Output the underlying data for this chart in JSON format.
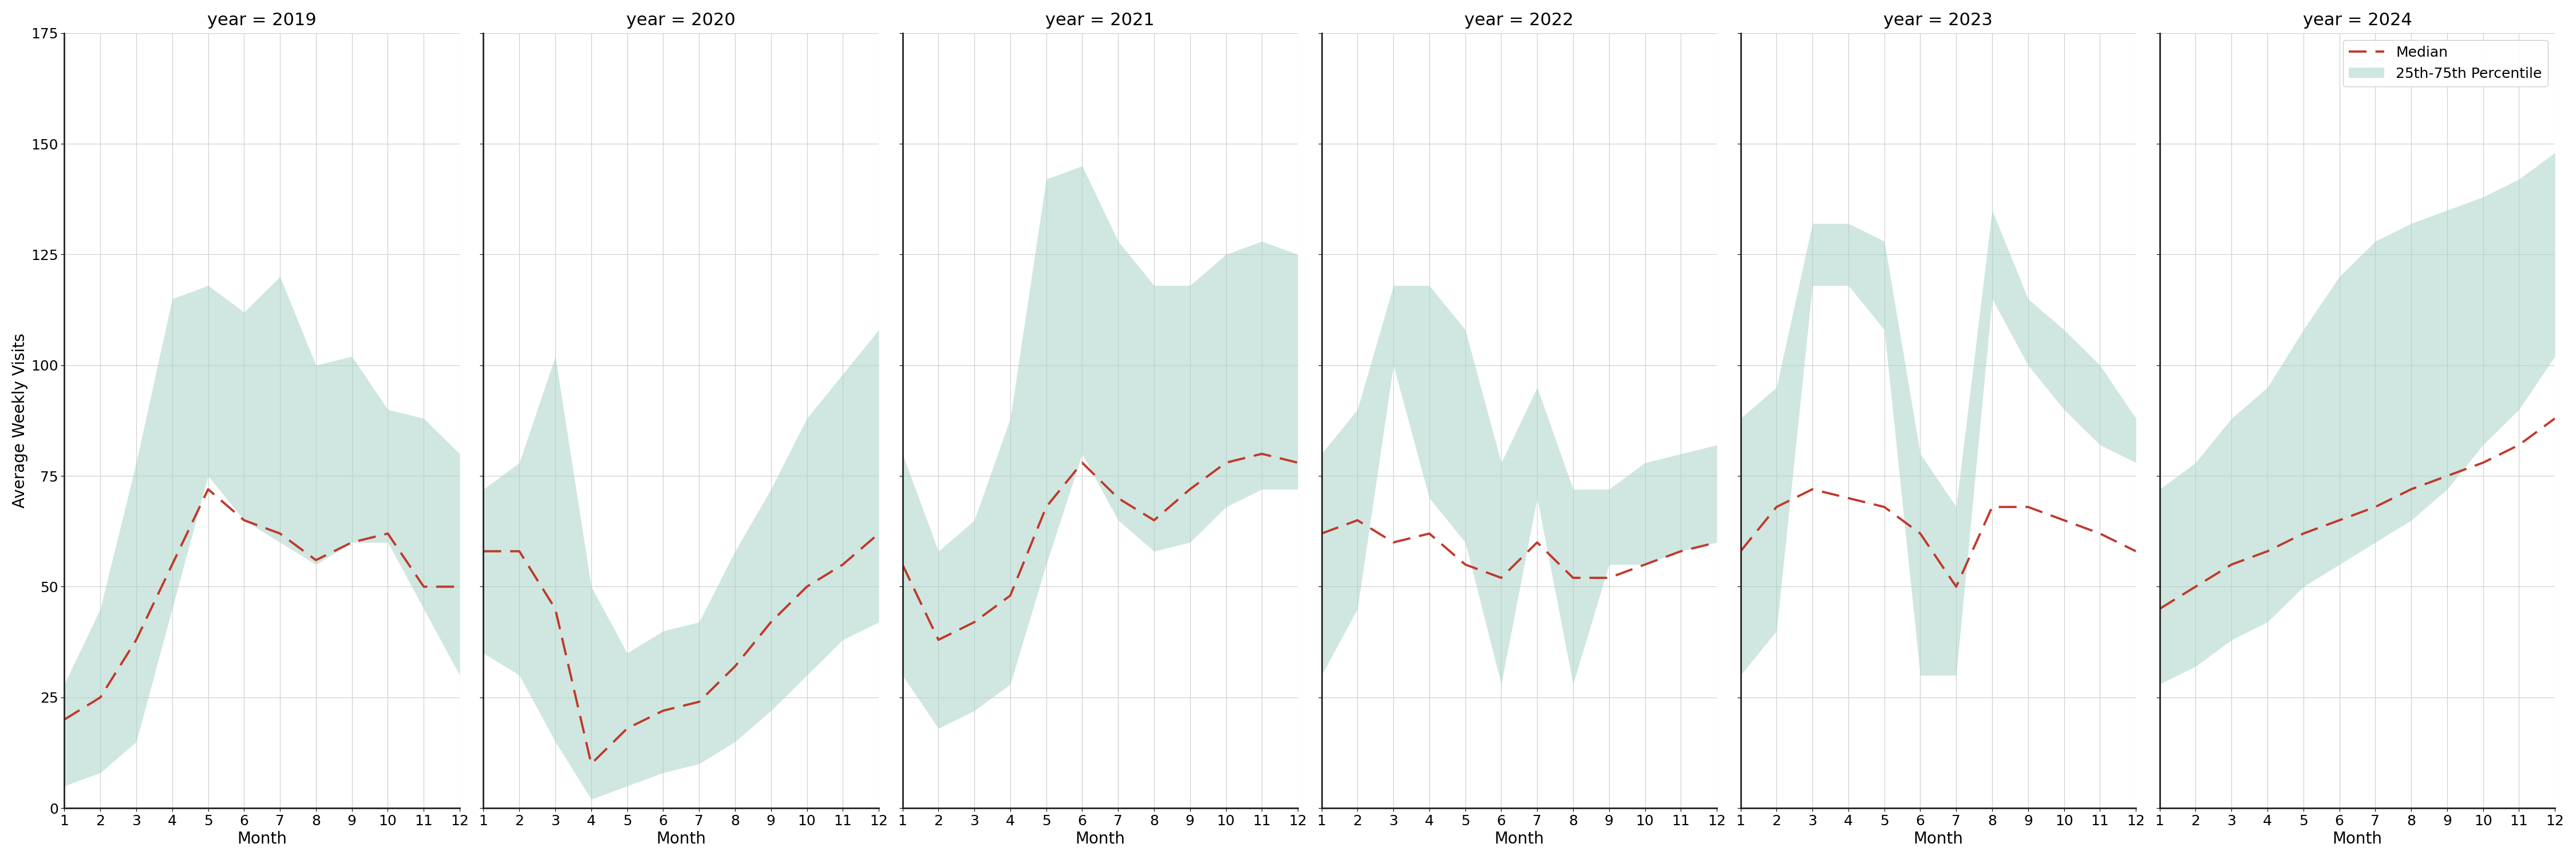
{
  "years": [
    2019,
    2020,
    2021,
    2022,
    2023,
    2024
  ],
  "months": [
    1,
    2,
    3,
    4,
    5,
    6,
    7,
    8,
    9,
    10,
    11,
    12
  ],
  "median": {
    "2019": [
      20,
      25,
      38,
      55,
      72,
      65,
      62,
      56,
      60,
      62,
      50,
      50
    ],
    "2020": [
      58,
      58,
      45,
      10,
      18,
      22,
      24,
      32,
      42,
      50,
      55,
      62
    ],
    "2021": [
      55,
      38,
      42,
      48,
      68,
      78,
      70,
      65,
      72,
      78,
      80,
      78
    ],
    "2022": [
      62,
      65,
      60,
      62,
      55,
      52,
      60,
      52,
      52,
      55,
      58,
      60
    ],
    "2023": [
      58,
      68,
      72,
      70,
      68,
      62,
      50,
      68,
      68,
      65,
      62,
      58
    ],
    "2024": [
      45,
      50,
      55,
      58,
      62,
      65,
      68,
      72,
      75,
      78,
      82,
      88
    ]
  },
  "p25": {
    "2019": [
      5,
      8,
      15,
      45,
      75,
      65,
      60,
      55,
      60,
      60,
      45,
      30
    ],
    "2020": [
      35,
      30,
      15,
      2,
      5,
      8,
      10,
      15,
      22,
      30,
      38,
      42
    ],
    "2021": [
      30,
      18,
      22,
      28,
      55,
      80,
      65,
      58,
      60,
      68,
      72,
      72
    ],
    "2022": [
      30,
      45,
      100,
      70,
      60,
      28,
      70,
      28,
      55,
      55,
      58,
      60
    ],
    "2023": [
      30,
      40,
      118,
      118,
      108,
      30,
      30,
      115,
      100,
      90,
      82,
      78
    ],
    "2024": [
      28,
      32,
      38,
      42,
      50,
      55,
      60,
      65,
      72,
      82,
      90,
      102
    ]
  },
  "p75": {
    "2019": [
      28,
      45,
      78,
      115,
      118,
      112,
      120,
      100,
      102,
      90,
      88,
      80
    ],
    "2020": [
      72,
      78,
      102,
      50,
      35,
      40,
      42,
      58,
      72,
      88,
      98,
      108
    ],
    "2021": [
      80,
      58,
      65,
      88,
      142,
      145,
      128,
      118,
      118,
      125,
      128,
      125
    ],
    "2022": [
      80,
      90,
      118,
      118,
      108,
      78,
      95,
      72,
      72,
      78,
      80,
      82
    ],
    "2023": [
      88,
      95,
      132,
      132,
      128,
      80,
      68,
      135,
      115,
      108,
      100,
      88
    ],
    "2024": [
      72,
      78,
      88,
      95,
      108,
      120,
      128,
      132,
      135,
      138,
      142,
      148
    ]
  },
  "fill_color": "#a8d5c8",
  "fill_alpha": 0.55,
  "line_color": "#c0392b",
  "grid_color": "#cccccc",
  "bg_color": "#ffffff",
  "ylabel": "Average Weekly Visits",
  "xlabel": "Month",
  "ylim": [
    0,
    175
  ],
  "yticks": [
    0,
    25,
    50,
    75,
    100,
    125,
    150,
    175
  ],
  "xticks": [
    1,
    2,
    3,
    4,
    5,
    6,
    7,
    8,
    9,
    10,
    11,
    12
  ],
  "legend_median": "Median",
  "legend_band": "25th-75th Percentile",
  "title_fontsize": 22,
  "label_fontsize": 20,
  "tick_fontsize": 18,
  "legend_fontsize": 18
}
